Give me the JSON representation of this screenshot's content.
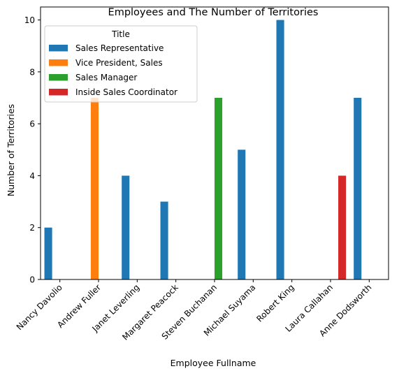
{
  "chart_data": {
    "type": "bar",
    "title": "Employees and The Number of Territories",
    "xlabel": "Employee Fullname",
    "ylabel": "Number of Territories",
    "ylim": [
      0,
      10.5
    ],
    "yticks": [
      0,
      2,
      4,
      6,
      8,
      10
    ],
    "grid": false,
    "legend": {
      "title": "Title",
      "placement": "upper-left"
    },
    "categories": [
      "Nancy Davolio",
      "Andrew Fuller",
      "Janet Leverling",
      "Margaret Peacock",
      "Steven Buchanan",
      "Michael Suyama",
      "Robert King",
      "Laura Callahan",
      "Anne Dodsworth"
    ],
    "series": [
      {
        "name": "Sales Representative",
        "color": "#1f77b4",
        "values": [
          2,
          null,
          4,
          3,
          null,
          5,
          10,
          null,
          7
        ]
      },
      {
        "name": "Vice President, Sales",
        "color": "#ff7f0e",
        "values": [
          null,
          7,
          null,
          null,
          null,
          null,
          null,
          null,
          null
        ]
      },
      {
        "name": "Sales Manager",
        "color": "#2ca02c",
        "values": [
          null,
          null,
          null,
          null,
          7,
          null,
          null,
          null,
          null
        ]
      },
      {
        "name": "Inside Sales Coordinator",
        "color": "#d62728",
        "values": [
          null,
          null,
          null,
          null,
          null,
          null,
          null,
          4,
          null
        ]
      }
    ]
  }
}
